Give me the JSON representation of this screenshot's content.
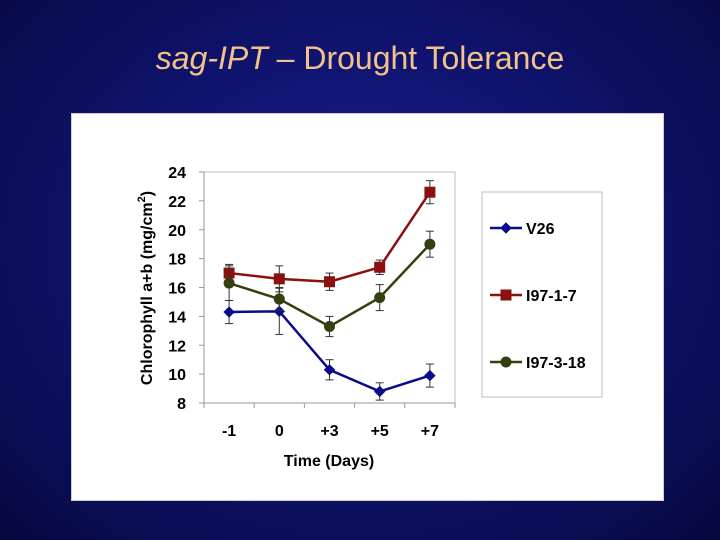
{
  "slide": {
    "title_italic": "sag-IPT",
    "title_rest": " – Drought Tolerance"
  },
  "chart_data": {
    "type": "line",
    "title": "sag-IPT – Drought Tolerance",
    "xlabel": "Time (Days)",
    "ylabel_main": "Chlorophyll a+b (mg/cm",
    "ylabel_sup": "2",
    "ylabel_close": ")",
    "categories": [
      "-1",
      "0",
      "+3",
      "+5",
      "+7"
    ],
    "ylim": [
      8,
      24
    ],
    "yticks": [
      8,
      10,
      12,
      14,
      16,
      18,
      20,
      22,
      24
    ],
    "grid": false,
    "legend_position": "right",
    "series": [
      {
        "name": "V26",
        "color": "#0a0a8c",
        "marker": "diamond",
        "values": [
          14.3,
          14.35,
          10.3,
          8.8,
          9.9
        ],
        "errors": [
          0.8,
          1.6,
          0.7,
          0.6,
          0.8
        ]
      },
      {
        "name": "I97-1-7",
        "color": "#8b1010",
        "marker": "square",
        "values": [
          17.0,
          16.6,
          16.4,
          17.4,
          22.6
        ],
        "errors": [
          0.6,
          0.9,
          0.6,
          0.5,
          0.8
        ]
      },
      {
        "name": "I97-3-18",
        "color": "#33400f",
        "marker": "circle",
        "values": [
          16.3,
          15.2,
          13.3,
          15.3,
          19.0
        ],
        "errors": [
          1.2,
          0.8,
          0.7,
          0.9,
          0.9
        ]
      }
    ]
  }
}
